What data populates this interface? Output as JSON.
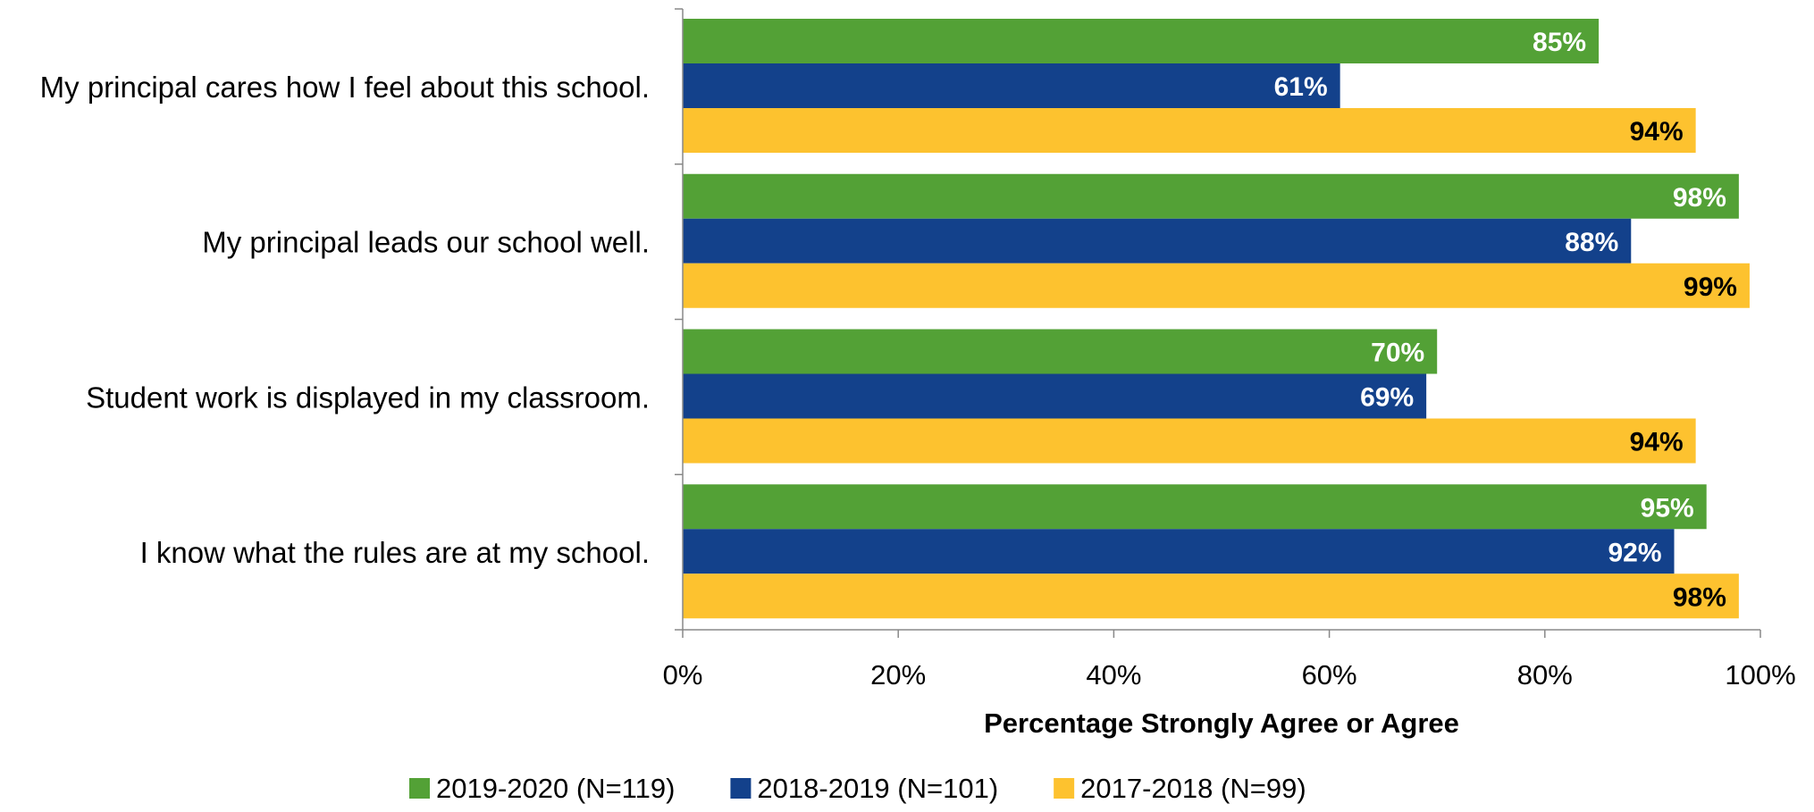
{
  "chart_data": {
    "type": "bar",
    "orientation": "horizontal",
    "categories": [
      "My principal cares how I feel about this school.",
      "My principal leads our school well.",
      "Student work is displayed in my classroom.",
      "I know what the rules are at my school."
    ],
    "series": [
      {
        "name": "2019-2020 (N=119)",
        "color": "#53A136",
        "label_color": "#ffffff",
        "values": [
          85,
          98,
          70,
          95
        ],
        "labels": [
          "85%",
          "98%",
          "70%",
          "95%"
        ]
      },
      {
        "name": "2018-2019 (N=101)",
        "color": "#13418B",
        "label_color": "#ffffff",
        "values": [
          61,
          88,
          69,
          92
        ],
        "labels": [
          "61%",
          "88%",
          "69%",
          "92%"
        ]
      },
      {
        "name": "2017-2018 (N=99)",
        "color": "#FDC22F",
        "label_color": "#000000",
        "values": [
          94,
          99,
          94,
          98
        ],
        "labels": [
          "94%",
          "99%",
          "94%",
          "98%"
        ]
      }
    ],
    "xlabel": "Percentage Strongly Agree or Agree",
    "xlim": [
      0,
      100
    ],
    "xticks": [
      0,
      20,
      40,
      60,
      80,
      100
    ],
    "xtick_labels": [
      "0%",
      "20%",
      "40%",
      "60%",
      "80%",
      "100%"
    ],
    "grid": false,
    "legend_position": "bottom"
  }
}
